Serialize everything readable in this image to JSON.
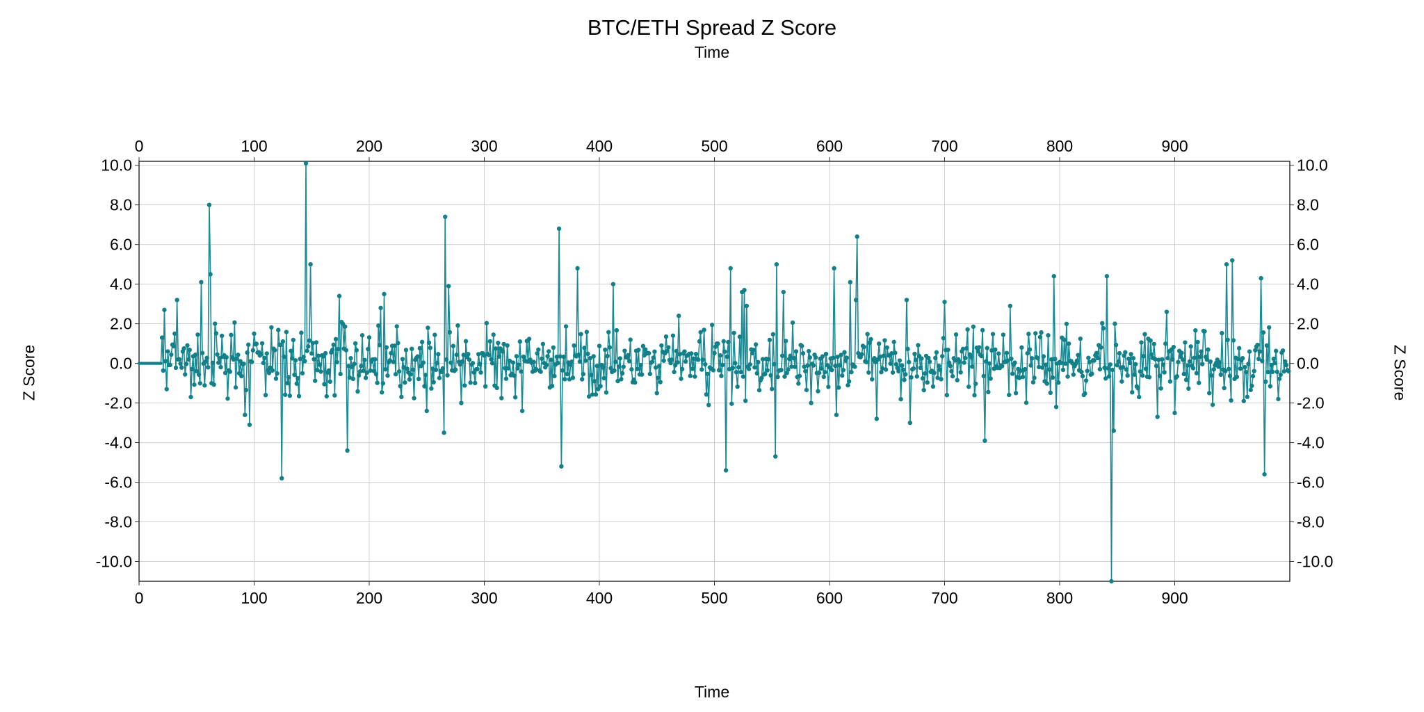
{
  "chart_data": {
    "type": "line",
    "title": "BTC/ETH Spread Z Score",
    "xlabel": "Time",
    "ylabel": "Z Score",
    "xlim": [
      0,
      1000
    ],
    "ylim": [
      -11,
      10.2
    ],
    "x_ticks": [
      "0",
      "100",
      "200",
      "300",
      "400",
      "500",
      "600",
      "700",
      "800",
      "900"
    ],
    "y_ticks": [
      "10.0",
      "8.0",
      "6.0",
      "4.0",
      "2.0",
      "0.0",
      "-2.0",
      "-4.0",
      "-6.0",
      "-8.0",
      "-10.0"
    ],
    "grid": true,
    "markers": true,
    "line_color": "#1a8a94",
    "marker_color": "#137f89",
    "flat_until": 20,
    "series": [
      {
        "x": [
          0,
          20,
          22,
          24,
          31,
          33,
          38,
          45,
          54,
          60,
          61,
          62,
          92,
          96,
          100,
          110,
          124,
          145,
          149,
          174,
          177,
          181,
          210,
          213,
          250,
          265,
          266,
          269,
          300,
          333,
          360,
          365,
          367,
          381,
          412,
          450,
          469,
          495,
          510,
          514,
          524,
          526,
          528,
          553,
          554,
          560,
          584,
          604,
          606,
          618,
          623,
          624,
          641,
          667,
          670,
          700,
          702,
          735,
          757,
          762,
          795,
          797,
          841,
          845,
          847,
          848,
          885,
          893,
          900,
          930,
          945,
          950,
          960,
          975,
          978,
          980,
          990,
          999
        ],
        "y": [
          0.0,
          1.3,
          2.7,
          -1.3,
          1.5,
          3.2,
          0.6,
          -1.7,
          4.1,
          -0.2,
          8.0,
          4.5,
          -2.6,
          -3.1,
          1.5,
          -1.6,
          -5.8,
          10.1,
          5.0,
          3.4,
          2.0,
          -4.4,
          2.8,
          3.5,
          -2.4,
          -3.5,
          7.4,
          3.9,
          0.4,
          -2.4,
          0.8,
          6.8,
          -5.2,
          4.8,
          4.0,
          -1.5,
          2.4,
          -2.1,
          -5.4,
          4.8,
          3.6,
          3.7,
          2.9,
          -4.7,
          5.0,
          3.6,
          -2.0,
          4.8,
          -2.6,
          4.1,
          3.2,
          6.4,
          -2.8,
          3.2,
          -3.0,
          3.1,
          -1.6,
          -3.9,
          2.9,
          -1.5,
          4.4,
          -2.2,
          4.4,
          -11.0,
          -3.4,
          2.0,
          -2.7,
          2.6,
          -2.5,
          -1.5,
          5.0,
          5.2,
          -1.9,
          4.3,
          -5.6,
          0.9,
          -1.8,
          -0.4
        ]
      }
    ]
  }
}
